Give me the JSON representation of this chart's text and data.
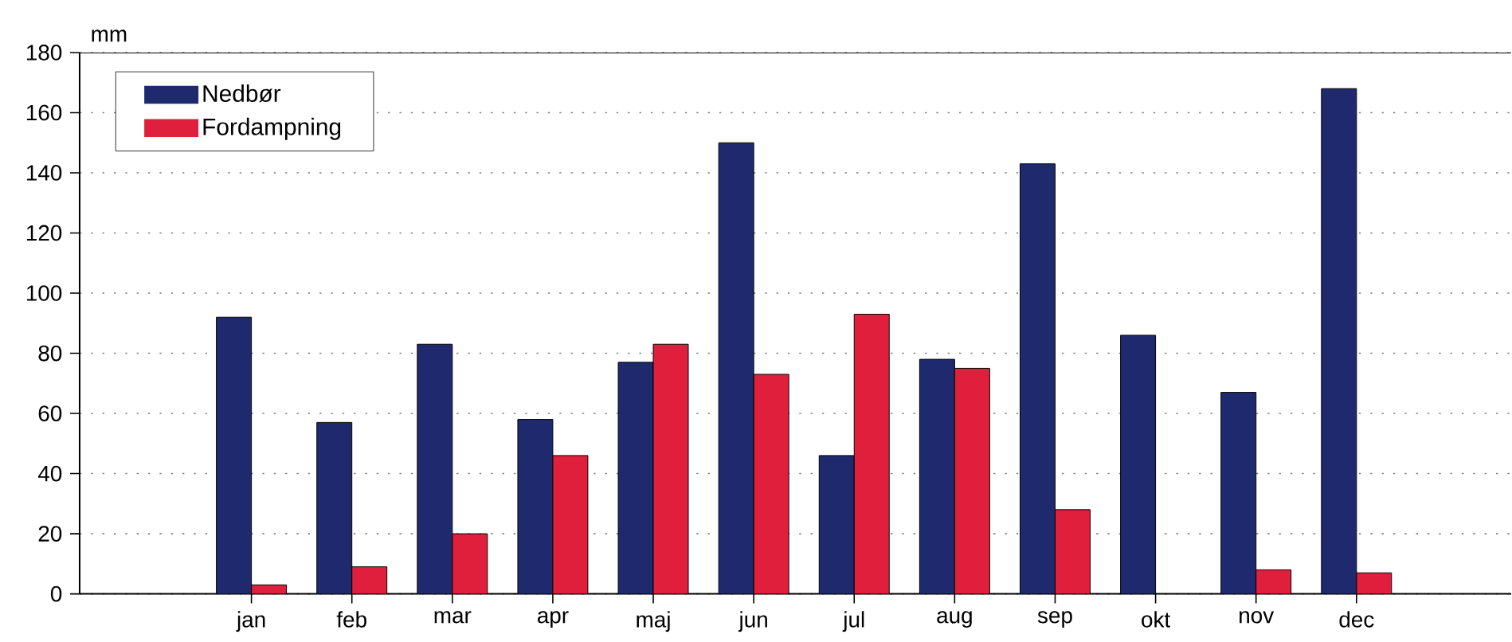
{
  "chart_data": {
    "type": "bar",
    "ylabel": "mm",
    "categories": [
      "jan",
      "feb",
      "mar",
      "apr",
      "maj",
      "jun",
      "jul",
      "aug",
      "sep",
      "okt",
      "nov",
      "dec"
    ],
    "series": [
      {
        "name": "Nedbør",
        "color": "#1f2a6e",
        "values": [
          92,
          57,
          83,
          58,
          77,
          150,
          46,
          78,
          143,
          86,
          67,
          168
        ]
      },
      {
        "name": "Fordampning",
        "color": "#e01f3d",
        "values": [
          3,
          9,
          20,
          46,
          83,
          73,
          93,
          75,
          28,
          0,
          8,
          7
        ]
      }
    ],
    "ylim": [
      0,
      180
    ],
    "yticks": [
      0,
      20,
      40,
      60,
      80,
      100,
      120,
      140,
      160,
      180
    ],
    "grid": "y",
    "legend": "top left"
  }
}
